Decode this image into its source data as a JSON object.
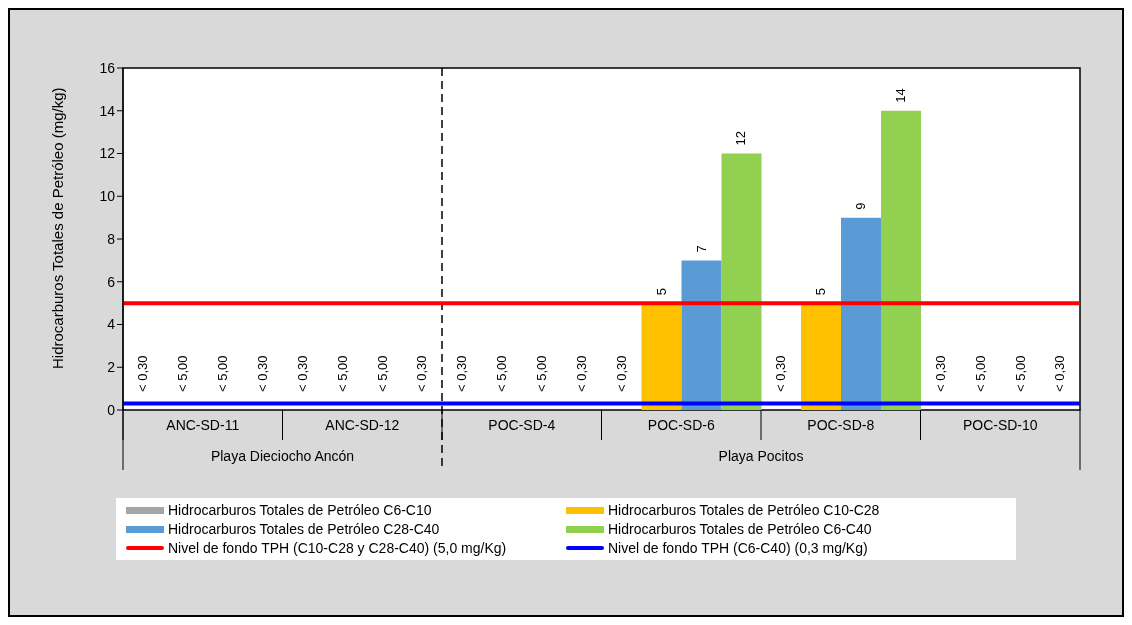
{
  "chart_data": {
    "type": "bar",
    "ylabel": "Hidrocarburos Totales de Petróleo (mg/kg)",
    "categories": [
      "ANC-SD-11",
      "ANC-SD-12",
      "POC-SD-4",
      "POC-SD-6",
      "POC-SD-8",
      "POC-SD-10"
    ],
    "series": [
      {
        "name": "Hidrocarburos Totales de Petróleo C6-C10",
        "color": "#a5a5a5",
        "values": [
          null,
          null,
          null,
          null,
          null,
          null
        ],
        "value_labels": [
          "< 0,30",
          "< 0,30",
          "< 0,30",
          "< 0,30",
          "< 0,30",
          "< 0,30"
        ]
      },
      {
        "name": "Hidrocarburos Totales de Petróleo C10-C28",
        "color": "#ffc000",
        "values": [
          null,
          null,
          null,
          5,
          5,
          null
        ],
        "value_labels": [
          "< 5,00",
          "< 5,00",
          "< 5,00",
          "5",
          "5",
          "< 5,00"
        ]
      },
      {
        "name": "Hidrocarburos Totales de Petróleo C28-C40",
        "color": "#5b9bd5",
        "values": [
          null,
          null,
          null,
          7,
          9,
          null
        ],
        "value_labels": [
          "< 5,00",
          "< 5,00",
          "< 5,00",
          "7",
          "9",
          "< 5,00"
        ]
      },
      {
        "name": "Hidrocarburos Totales de Petróleo C6-C40",
        "color": "#92d050",
        "values": [
          null,
          null,
          null,
          12,
          14,
          null
        ],
        "value_labels": [
          "< 0,30",
          "< 0,30",
          "< 0,30",
          "12",
          "14",
          "< 0,30"
        ]
      }
    ],
    "ref_lines": [
      {
        "axis": "y",
        "value": 5,
        "label": "Nivel de fondo TPH (C10-C28 y C28-C40) (5,0 mg/Kg)",
        "color": "#ff0000"
      },
      {
        "axis": "y",
        "value": 0.3,
        "label": "Nivel de fondo TPH (C6-C40) (0,3 mg/Kg)",
        "color": "#0000ff"
      }
    ],
    "annotations": [
      "Playa Dieciocho Ancón",
      "Playa Pocitos"
    ],
    "ylim": [
      0,
      16
    ],
    "yticks": [
      0,
      2,
      4,
      6,
      8,
      10,
      12,
      14,
      16
    ],
    "legend": "bottom"
  }
}
